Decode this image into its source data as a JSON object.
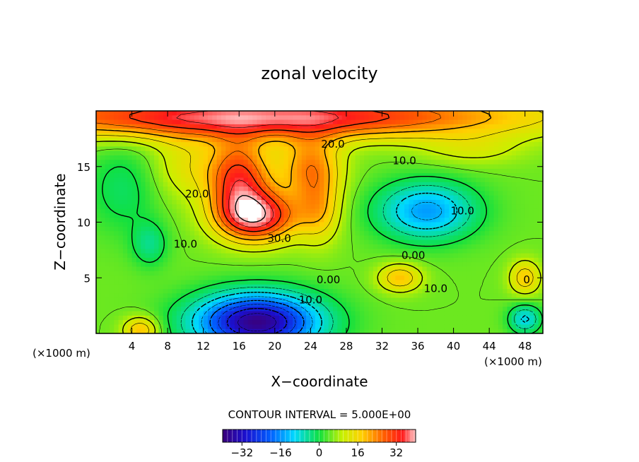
{
  "chart_data": {
    "type": "heatmap",
    "title": "zonal velocity",
    "xlabel": "X−coordinate",
    "ylabel": "Z−coordinate",
    "x_unit_left": "(×1000 m)",
    "x_unit_right": "(×1000 m)",
    "xlim": [
      0,
      50
    ],
    "ylim": [
      0,
      20
    ],
    "x_ticks": [
      4,
      8,
      12,
      16,
      20,
      24,
      28,
      32,
      36,
      40,
      44,
      48
    ],
    "x_tick_labels": [
      "4",
      "8",
      "12",
      "16",
      "20",
      "24",
      "28",
      "32",
      "36",
      "40",
      "44",
      "48"
    ],
    "y_ticks": [
      5,
      10,
      15
    ],
    "y_tick_labels": [
      "5",
      "10",
      "15"
    ],
    "contour_interval_text": "CONTOUR INTERVAL = 5.000E+00",
    "contour_interval": 5,
    "colorbar": {
      "range": [
        -40,
        40
      ],
      "ticks": [
        -32,
        -16,
        0,
        16,
        32
      ],
      "tick_labels": [
        "−32",
        "−16",
        "0",
        "16",
        "32"
      ]
    },
    "contour_labels": [
      {
        "text": "20.0",
        "x": 26.5,
        "z": 17.0
      },
      {
        "text": "10.0",
        "x": 34.5,
        "z": 15.5
      },
      {
        "text": "20.0",
        "x": 11.3,
        "z": 12.5
      },
      {
        "text": "10.0",
        "x": 41.0,
        "z": 11.0
      },
      {
        "text": "30.0",
        "x": 20.5,
        "z": 8.5
      },
      {
        "text": "10.0",
        "x": 10.0,
        "z": 8.0
      },
      {
        "text": "0.00",
        "x": 35.5,
        "z": 7.0
      },
      {
        "text": "0.00",
        "x": 26.0,
        "z": 4.8
      },
      {
        "text": "10.0",
        "x": 38.0,
        "z": 4.0
      },
      {
        "text": "10.0",
        "x": 24.0,
        "z": 3.0
      },
      {
        "text": "0",
        "x": 48.2,
        "z": 4.8
      }
    ],
    "features": [
      {
        "type": "jet",
        "x": 18,
        "z": 18.5,
        "value": 38
      },
      {
        "type": "jet",
        "x": 18,
        "z": 10.5,
        "value": 36
      },
      {
        "type": "minimum",
        "x": 18,
        "z": 1.0,
        "value": -36
      },
      {
        "type": "minimum",
        "x": 37,
        "z": 11.0,
        "value": -18
      },
      {
        "type": "minimum",
        "x": 6,
        "z": 8.0,
        "value": -7
      },
      {
        "type": "maximum",
        "x": 34,
        "z": 5.0,
        "value": 18
      },
      {
        "type": "maximum",
        "x": 48,
        "z": 5.0,
        "value": 16
      },
      {
        "type": "maximum",
        "x": 5,
        "z": 0.5,
        "value": 18
      },
      {
        "type": "minimum",
        "x": 48,
        "z": 1.5,
        "value": -12
      }
    ]
  }
}
